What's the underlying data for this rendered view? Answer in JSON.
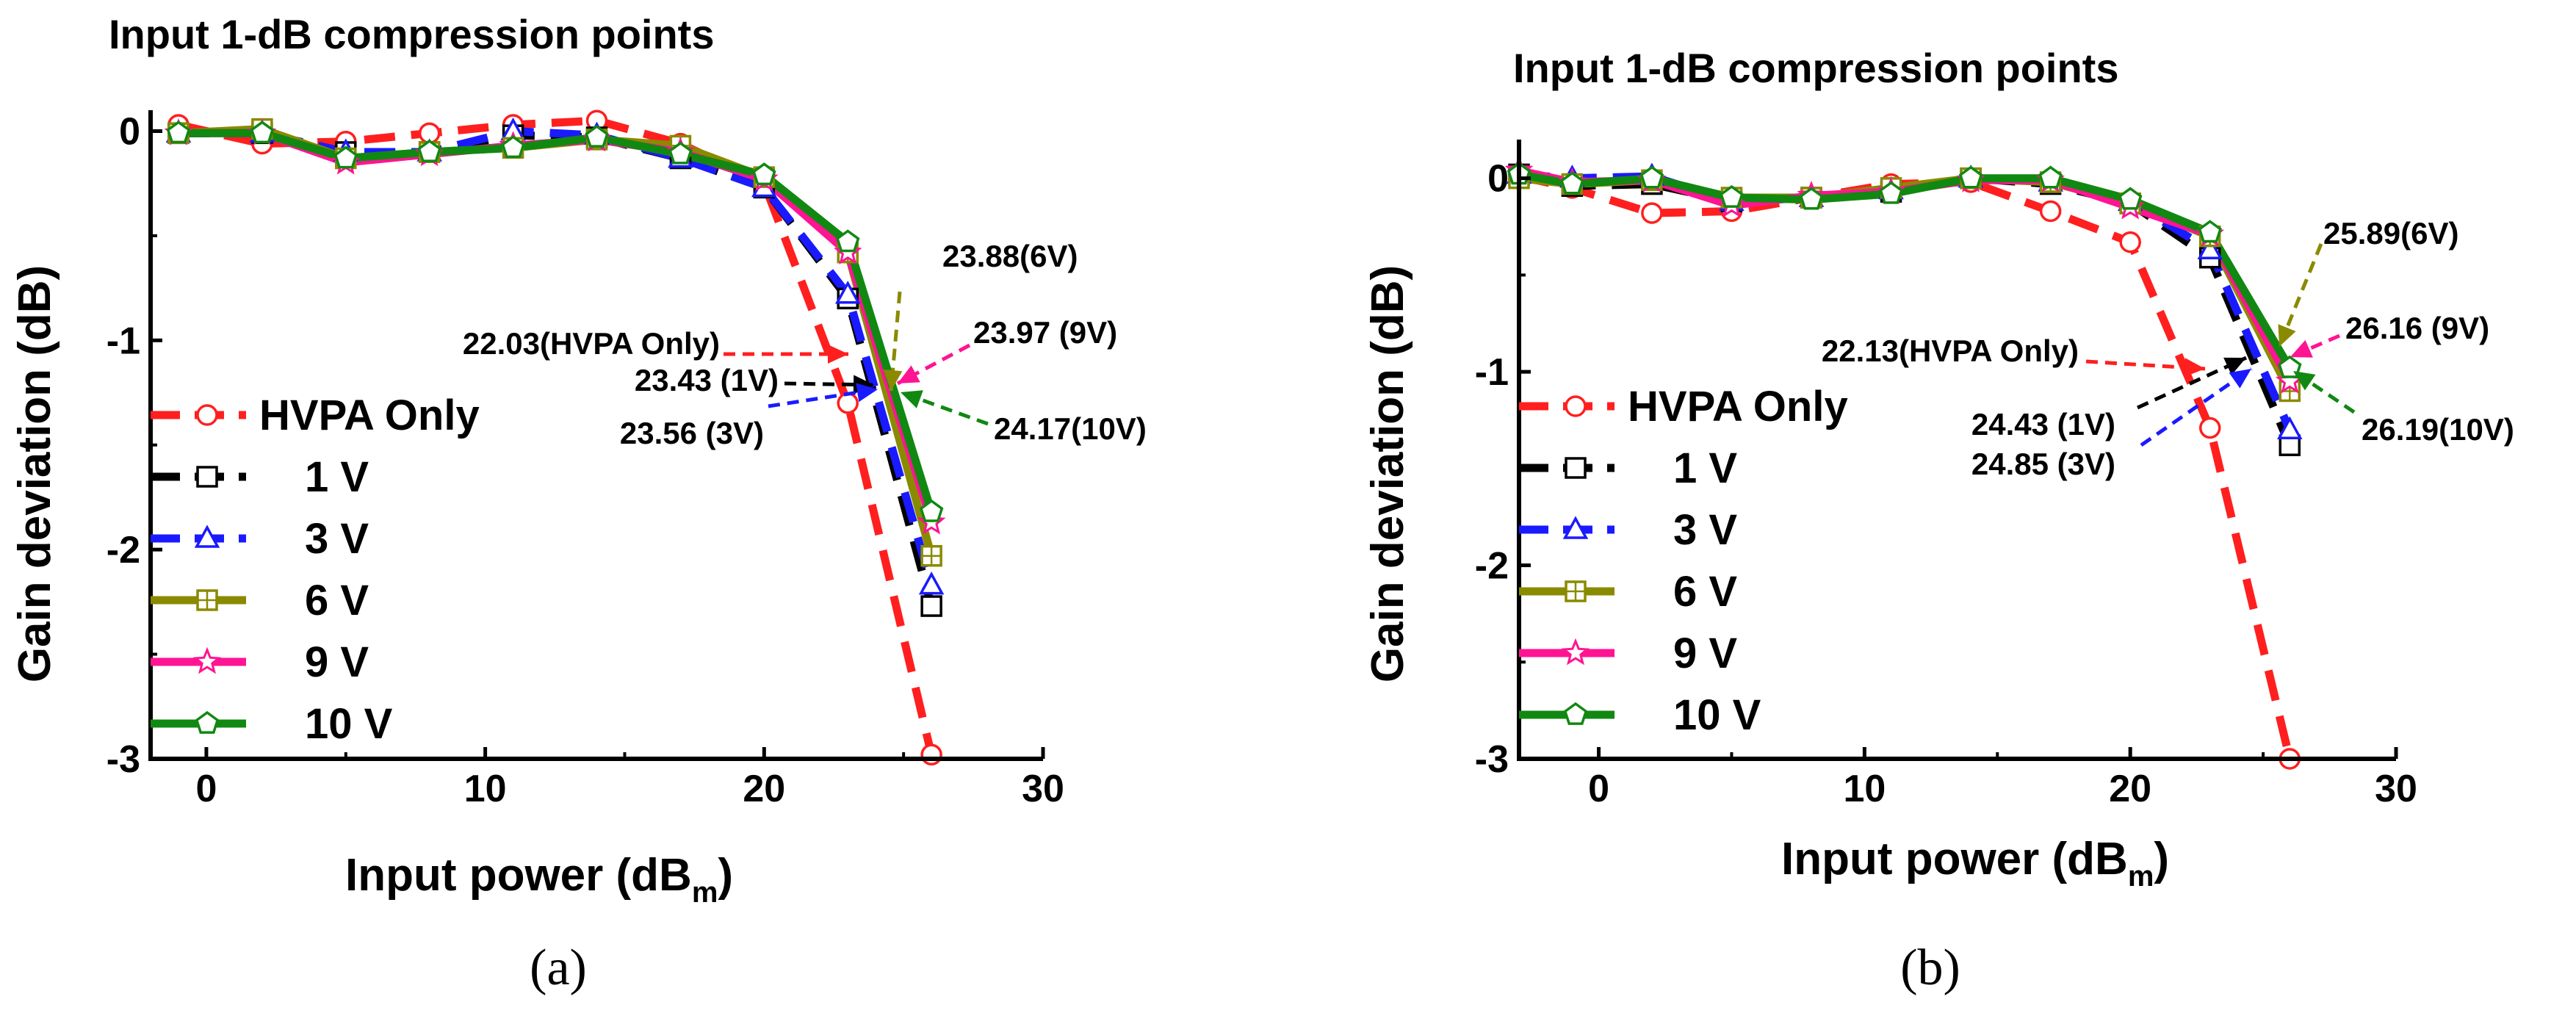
{
  "colors": {
    "hvpa": "#ff1f1f",
    "v1": "#000000",
    "v3": "#1a1aff",
    "v6": "#8a8a00",
    "v9": "#ff1493",
    "v10": "#118811"
  },
  "chart_data": [
    {
      "type": "line",
      "panel_caption": "(a)",
      "title": "Input 1-dB compression points",
      "xlabel": "Input power (dB",
      "xlabel_sub": "m",
      "xlabel_close": ")",
      "ylabel": "Gain deviation (dB)",
      "xlim": [
        -2,
        30
      ],
      "ylim": [
        -3,
        0.1
      ],
      "x_ticks": [
        0,
        10,
        20,
        30
      ],
      "x_tick_labels": [
        "0",
        "10",
        "20",
        "30"
      ],
      "y_ticks": [
        0,
        -1,
        -2,
        -3
      ],
      "y_tick_labels": [
        "0",
        "-1",
        "-2",
        "-3"
      ],
      "x": [
        -1,
        2,
        5,
        8,
        11,
        14,
        17,
        20,
        23,
        26
      ],
      "series": [
        {
          "key": "hvpa",
          "name": "HVPA Only",
          "marker": "circle",
          "dash": true,
          "values": [
            0.03,
            -0.06,
            -0.05,
            -0.01,
            0.03,
            0.05,
            -0.06,
            -0.25,
            -1.3,
            -2.98
          ]
        },
        {
          "key": "v1",
          "name": "1 V",
          "marker": "square",
          "dash": true,
          "values": [
            -0.01,
            -0.01,
            -0.1,
            -0.1,
            -0.02,
            -0.03,
            -0.13,
            -0.27,
            -0.8,
            -2.27
          ]
        },
        {
          "key": "v3",
          "name": "3 V",
          "marker": "triangle",
          "dash": true,
          "values": [
            -0.01,
            -0.01,
            -0.1,
            -0.1,
            0.0,
            -0.02,
            -0.13,
            -0.27,
            -0.78,
            -2.17
          ]
        },
        {
          "key": "v6",
          "name": "6 V",
          "marker": "square-plus",
          "dash": false,
          "values": [
            -0.01,
            0.01,
            -0.13,
            -0.1,
            -0.08,
            -0.04,
            -0.07,
            -0.22,
            -0.58,
            -2.03
          ]
        },
        {
          "key": "v9",
          "name": "9 V",
          "marker": "star",
          "dash": false,
          "values": [
            -0.01,
            -0.01,
            -0.15,
            -0.11,
            -0.07,
            -0.04,
            -0.1,
            -0.23,
            -0.58,
            -1.87
          ]
        },
        {
          "key": "v10",
          "name": "10 V",
          "marker": "pentagon",
          "dash": false,
          "values": [
            -0.01,
            -0.01,
            -0.13,
            -0.1,
            -0.08,
            -0.03,
            -0.11,
            -0.21,
            -0.53,
            -1.82
          ]
        }
      ],
      "annotations": [
        {
          "text": "23.88(6V)",
          "series": "v6"
        },
        {
          "text": "22.03(HVPA Only)",
          "series": "hvpa"
        },
        {
          "text": "23.97 (9V)",
          "series": "v9"
        },
        {
          "text": "23.43 (1V)",
          "series": "v1"
        },
        {
          "text": "23.56 (3V)",
          "series": "v3"
        },
        {
          "text": "24.17(10V)",
          "series": "v10"
        }
      ],
      "legend_placement": "bottom-left"
    },
    {
      "type": "line",
      "panel_caption": "(b)",
      "title": "Input 1-dB compression points",
      "xlabel": "Input power (dB",
      "xlabel_sub": "m",
      "xlabel_close": ")",
      "ylabel": "Gain deviation (dB)",
      "xlim": [
        -3,
        30
      ],
      "ylim": [
        -3,
        0.2
      ],
      "x_ticks": [
        0,
        10,
        20,
        30
      ],
      "x_tick_labels": [
        "0",
        "10",
        "20",
        "30"
      ],
      "y_ticks": [
        0,
        -1,
        -2,
        -3
      ],
      "y_tick_labels": [
        "0",
        "-1",
        "-2",
        "-3"
      ],
      "x": [
        -3,
        -1,
        2,
        5,
        8,
        11,
        14,
        17,
        20,
        23,
        26
      ],
      "series": [
        {
          "key": "hvpa",
          "name": "HVPA Only",
          "marker": "circle",
          "dash": true,
          "values": [
            0.01,
            -0.05,
            -0.18,
            -0.17,
            -0.1,
            -0.03,
            -0.02,
            -0.17,
            -0.33,
            -1.29,
            -3.0
          ]
        },
        {
          "key": "v1",
          "name": "1 V",
          "marker": "square",
          "dash": true,
          "values": [
            0.02,
            -0.04,
            -0.03,
            -0.12,
            -0.1,
            -0.07,
            0.0,
            -0.03,
            -0.13,
            -0.41,
            -1.38
          ]
        },
        {
          "key": "v3",
          "name": "3 V",
          "marker": "triangle",
          "dash": true,
          "values": [
            0.02,
            0.0,
            0.01,
            -0.12,
            -0.1,
            -0.06,
            0.0,
            -0.02,
            -0.12,
            -0.37,
            -1.3
          ]
        },
        {
          "key": "v6",
          "name": "6 V",
          "marker": "square-plus",
          "dash": false,
          "values": [
            0.0,
            -0.03,
            -0.01,
            -0.1,
            -0.1,
            -0.05,
            0.0,
            -0.02,
            -0.13,
            -0.3,
            -1.1
          ]
        },
        {
          "key": "v9",
          "name": "9 V",
          "marker": "star",
          "dash": false,
          "values": [
            0.04,
            -0.02,
            -0.01,
            -0.14,
            -0.09,
            -0.07,
            -0.01,
            -0.01,
            -0.15,
            -0.29,
            -1.05
          ]
        },
        {
          "key": "v10",
          "name": "10 V",
          "marker": "pentagon",
          "dash": false,
          "values": [
            0.02,
            -0.03,
            0.0,
            -0.1,
            -0.11,
            -0.08,
            0.0,
            0.0,
            -0.11,
            -0.28,
            -0.98
          ]
        }
      ],
      "annotations": [
        {
          "text": "25.89(6V)",
          "series": "v6"
        },
        {
          "text": "22.13(HVPA Only)",
          "series": "hvpa"
        },
        {
          "text": "26.16 (9V)",
          "series": "v9"
        },
        {
          "text": "24.43 (1V)",
          "series": "v1"
        },
        {
          "text": "24.85 (3V)",
          "series": "v3"
        },
        {
          "text": "26.19(10V)",
          "series": "v10"
        }
      ],
      "legend_placement": "bottom-left"
    }
  ]
}
